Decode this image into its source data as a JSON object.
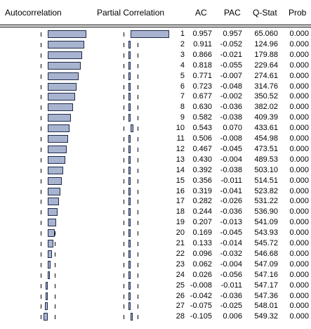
{
  "headers": {
    "autocorrelation": "Autocorrelation",
    "partial_correlation": "Partial Correlation",
    "ac": "AC",
    "pac": "PAC",
    "qstat": "Q-Stat",
    "prob": "Prob"
  },
  "colors": {
    "bar_fill": "#a8b3cf",
    "bar_border": "#1e2a4a"
  },
  "rows": [
    {
      "lag": "1",
      "ac": "0.957",
      "pac": "0.957",
      "q": "65.060",
      "prob": "0.000"
    },
    {
      "lag": "2",
      "ac": "0.911",
      "pac": "-0.052",
      "q": "124.96",
      "prob": "0.000"
    },
    {
      "lag": "3",
      "ac": "0.866",
      "pac": "-0.021",
      "q": "179.88",
      "prob": "0.000"
    },
    {
      "lag": "4",
      "ac": "0.818",
      "pac": "-0.055",
      "q": "229.64",
      "prob": "0.000"
    },
    {
      "lag": "5",
      "ac": "0.771",
      "pac": "-0.007",
      "q": "274.61",
      "prob": "0.000"
    },
    {
      "lag": "6",
      "ac": "0.723",
      "pac": "-0.048",
      "q": "314.76",
      "prob": "0.000"
    },
    {
      "lag": "7",
      "ac": "0.677",
      "pac": "-0.002",
      "q": "350.52",
      "prob": "0.000"
    },
    {
      "lag": "8",
      "ac": "0.630",
      "pac": "-0.036",
      "q": "382.02",
      "prob": "0.000"
    },
    {
      "lag": "9",
      "ac": "0.582",
      "pac": "-0.038",
      "q": "409.39",
      "prob": "0.000"
    },
    {
      "lag": "10",
      "ac": "0.543",
      "pac": "0.070",
      "q": "433.61",
      "prob": "0.000"
    },
    {
      "lag": "11",
      "ac": "0.506",
      "pac": "-0.008",
      "q": "454.98",
      "prob": "0.000"
    },
    {
      "lag": "12",
      "ac": "0.467",
      "pac": "-0.045",
      "q": "473.51",
      "prob": "0.000"
    },
    {
      "lag": "13",
      "ac": "0.430",
      "pac": "-0.004",
      "q": "489.53",
      "prob": "0.000"
    },
    {
      "lag": "14",
      "ac": "0.392",
      "pac": "-0.038",
      "q": "503.10",
      "prob": "0.000"
    },
    {
      "lag": "15",
      "ac": "0.356",
      "pac": "-0.011",
      "q": "514.51",
      "prob": "0.000"
    },
    {
      "lag": "16",
      "ac": "0.319",
      "pac": "-0.041",
      "q": "523.82",
      "prob": "0.000"
    },
    {
      "lag": "17",
      "ac": "0.282",
      "pac": "-0.026",
      "q": "531.22",
      "prob": "0.000"
    },
    {
      "lag": "18",
      "ac": "0.244",
      "pac": "-0.036",
      "q": "536.90",
      "prob": "0.000"
    },
    {
      "lag": "19",
      "ac": "0.207",
      "pac": "-0.013",
      "q": "541.09",
      "prob": "0.000"
    },
    {
      "lag": "20",
      "ac": "0.169",
      "pac": "-0.045",
      "q": "543.93",
      "prob": "0.000"
    },
    {
      "lag": "21",
      "ac": "0.133",
      "pac": "-0.014",
      "q": "545.72",
      "prob": "0.000"
    },
    {
      "lag": "22",
      "ac": "0.096",
      "pac": "-0.032",
      "q": "546.68",
      "prob": "0.000"
    },
    {
      "lag": "23",
      "ac": "0.062",
      "pac": "-0.004",
      "q": "547.09",
      "prob": "0.000"
    },
    {
      "lag": "24",
      "ac": "0.026",
      "pac": "-0.056",
      "q": "547.16",
      "prob": "0.000"
    },
    {
      "lag": "25",
      "ac": "-0.008",
      "pac": "-0.011",
      "q": "547.17",
      "prob": "0.000"
    },
    {
      "lag": "26",
      "ac": "-0.042",
      "pac": "-0.036",
      "q": "547.36",
      "prob": "0.000"
    },
    {
      "lag": "27",
      "ac": "-0.075",
      "pac": "-0.025",
      "q": "548.01",
      "prob": "0.000"
    },
    {
      "lag": "28",
      "ac": "-0.105",
      "pac": "0.006",
      "q": "549.32",
      "prob": "0.000"
    }
  ]
}
